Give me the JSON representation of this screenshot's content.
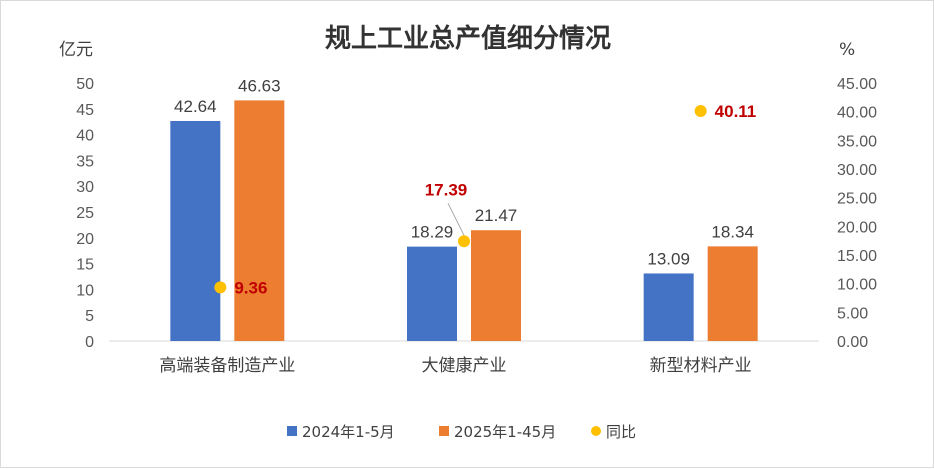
{
  "chart_data": {
    "type": "bar",
    "title": "规上工业总产值细分情况",
    "ylabel_left": "亿元",
    "ylabel_right": "%",
    "categories": [
      "高端装备制造产业",
      "大健康产业",
      "新型材料产业"
    ],
    "ylim": [
      0,
      50
    ],
    "ylim_right": [
      0,
      45
    ],
    "left_ticks": [
      "0",
      "5",
      "10",
      "15",
      "20",
      "25",
      "30",
      "35",
      "40",
      "45",
      "50"
    ],
    "right_ticks": [
      "0.00",
      "5.00",
      "10.00",
      "15.00",
      "20.00",
      "25.00",
      "30.00",
      "35.00",
      "40.00",
      "45.00"
    ],
    "series": [
      {
        "name": "2024年1-5月",
        "type": "bar",
        "axis": "left",
        "color": "#4472c4",
        "values": [
          42.64,
          18.29,
          13.09
        ],
        "labels": [
          "42.64",
          "18.29",
          "13.09"
        ]
      },
      {
        "name": "2025年1-45月",
        "type": "bar",
        "axis": "left",
        "color": "#ed7d31",
        "values": [
          46.63,
          21.47,
          18.34
        ],
        "labels": [
          "46.63",
          "21.47",
          "18.34"
        ]
      },
      {
        "name": "同比",
        "type": "scatter",
        "axis": "right",
        "color": "#ffc000",
        "values": [
          9.36,
          17.39,
          40.11
        ],
        "labels": [
          "9.36",
          "17.39",
          "40.11"
        ],
        "label_color": "#c00000"
      }
    ],
    "legend_position": "bottom",
    "grid": false
  }
}
